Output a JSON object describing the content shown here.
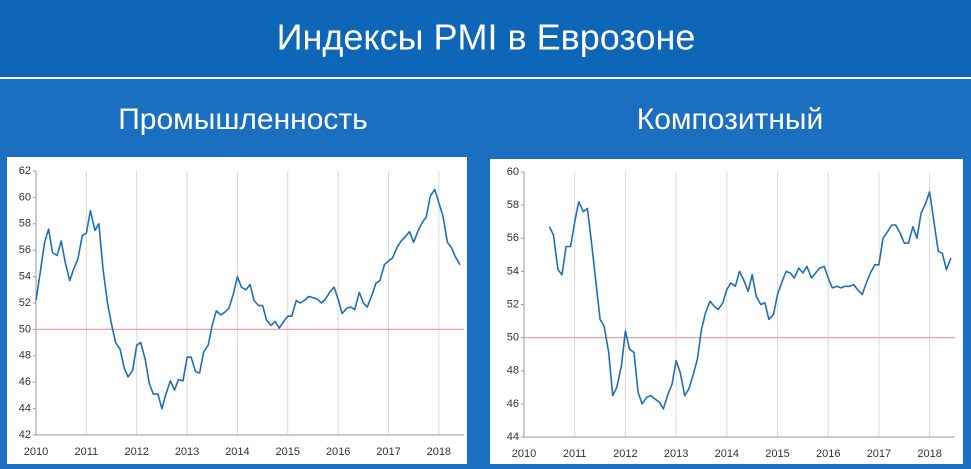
{
  "title": "Индексы PMI в Еврозоне",
  "chart_data": [
    {
      "type": "line",
      "title": "Промышленность",
      "color": "#1f6fb8",
      "ref_line": 50,
      "grid": true,
      "xlim": [
        2010,
        2018.5
      ],
      "xticks": [
        2010,
        2011,
        2012,
        2013,
        2014,
        2015,
        2016,
        2017,
        2018
      ],
      "ylim": [
        42,
        62
      ],
      "yticks": [
        42,
        44,
        46,
        48,
        50,
        52,
        54,
        56,
        58,
        60,
        62
      ],
      "x": [
        2010,
        2010.08,
        2010.17,
        2010.25,
        2010.33,
        2010.42,
        2010.5,
        2010.58,
        2010.67,
        2010.75,
        2010.83,
        2010.92,
        2011,
        2011.08,
        2011.17,
        2011.25,
        2011.33,
        2011.42,
        2011.5,
        2011.58,
        2011.67,
        2011.75,
        2011.83,
        2011.92,
        2012,
        2012.08,
        2012.17,
        2012.25,
        2012.33,
        2012.42,
        2012.5,
        2012.58,
        2012.67,
        2012.75,
        2012.83,
        2012.92,
        2013,
        2013.08,
        2013.17,
        2013.25,
        2013.33,
        2013.42,
        2013.5,
        2013.58,
        2013.67,
        2013.75,
        2013.83,
        2013.92,
        2014,
        2014.08,
        2014.17,
        2014.25,
        2014.33,
        2014.42,
        2014.5,
        2014.58,
        2014.67,
        2014.75,
        2014.83,
        2014.92,
        2015,
        2015.08,
        2015.17,
        2015.25,
        2015.33,
        2015.42,
        2015.5,
        2015.58,
        2015.67,
        2015.75,
        2015.83,
        2015.92,
        2016,
        2016.08,
        2016.17,
        2016.25,
        2016.33,
        2016.42,
        2016.5,
        2016.58,
        2016.67,
        2016.75,
        2016.83,
        2016.92,
        2017,
        2017.08,
        2017.17,
        2017.25,
        2017.33,
        2017.42,
        2017.5,
        2017.58,
        2017.67,
        2017.75,
        2017.83,
        2017.92,
        2018,
        2018.08,
        2018.17,
        2018.25,
        2018.33,
        2018.42
      ],
      "values": [
        52.2,
        54.2,
        56.6,
        57.6,
        55.8,
        55.6,
        56.7,
        55.1,
        53.7,
        54.6,
        55.3,
        57.1,
        57.3,
        59.0,
        57.5,
        58.0,
        54.6,
        52.0,
        50.4,
        49.0,
        48.5,
        47.1,
        46.4,
        46.9,
        48.8,
        49.0,
        47.7,
        45.9,
        45.1,
        45.1,
        44.0,
        45.1,
        46.1,
        45.4,
        46.2,
        46.1,
        47.9,
        47.9,
        46.8,
        46.7,
        48.3,
        48.8,
        50.3,
        51.4,
        51.1,
        51.3,
        51.6,
        52.7,
        54.0,
        53.2,
        53.0,
        53.4,
        52.2,
        51.8,
        51.8,
        50.7,
        50.3,
        50.6,
        50.1,
        50.6,
        51.0,
        51.0,
        52.2,
        52.0,
        52.2,
        52.5,
        52.4,
        52.3,
        52.0,
        52.3,
        52.8,
        53.2,
        52.3,
        51.2,
        51.6,
        51.7,
        51.5,
        52.8,
        52.0,
        51.7,
        52.6,
        53.5,
        53.7,
        54.9,
        55.2,
        55.4,
        56.2,
        56.7,
        57.0,
        57.4,
        56.6,
        57.4,
        58.1,
        58.5,
        60.1,
        60.6,
        59.6,
        58.6,
        56.6,
        56.2,
        55.5,
        54.9
      ]
    },
    {
      "type": "line",
      "title": "Композитный",
      "color": "#1f6fb8",
      "ref_line": 50,
      "grid": true,
      "xlim": [
        2010,
        2018.5
      ],
      "xticks": [
        2010,
        2011,
        2012,
        2013,
        2014,
        2015,
        2016,
        2017,
        2018
      ],
      "ylim": [
        44,
        60
      ],
      "yticks": [
        44,
        46,
        48,
        50,
        52,
        54,
        56,
        58,
        60
      ],
      "x": [
        2010.5,
        2010.58,
        2010.67,
        2010.75,
        2010.83,
        2010.92,
        2011,
        2011.08,
        2011.17,
        2011.25,
        2011.33,
        2011.42,
        2011.5,
        2011.58,
        2011.67,
        2011.75,
        2011.83,
        2011.92,
        2012,
        2012.08,
        2012.17,
        2012.25,
        2012.33,
        2012.42,
        2012.5,
        2012.58,
        2012.67,
        2012.75,
        2012.83,
        2012.92,
        2013,
        2013.08,
        2013.17,
        2013.25,
        2013.33,
        2013.42,
        2013.5,
        2013.58,
        2013.67,
        2013.75,
        2013.83,
        2013.92,
        2014,
        2014.08,
        2014.17,
        2014.25,
        2014.33,
        2014.42,
        2014.5,
        2014.58,
        2014.67,
        2014.75,
        2014.83,
        2014.92,
        2015,
        2015.08,
        2015.17,
        2015.25,
        2015.33,
        2015.42,
        2015.5,
        2015.58,
        2015.67,
        2015.75,
        2015.83,
        2015.92,
        2016,
        2016.08,
        2016.17,
        2016.25,
        2016.33,
        2016.42,
        2016.5,
        2016.58,
        2016.67,
        2016.75,
        2016.83,
        2016.92,
        2017,
        2017.08,
        2017.17,
        2017.25,
        2017.33,
        2017.42,
        2017.5,
        2017.58,
        2017.67,
        2017.75,
        2017.83,
        2017.92,
        2018,
        2018.08,
        2018.17,
        2018.25,
        2018.33,
        2018.42
      ],
      "values": [
        56.7,
        56.2,
        54.1,
        53.8,
        55.5,
        55.5,
        57.0,
        58.2,
        57.6,
        57.8,
        55.8,
        53.3,
        51.1,
        50.7,
        49.1,
        46.5,
        47.0,
        48.3,
        50.4,
        49.3,
        49.1,
        46.7,
        46.0,
        46.4,
        46.5,
        46.3,
        46.1,
        45.7,
        46.5,
        47.2,
        48.6,
        47.9,
        46.5,
        46.9,
        47.7,
        48.7,
        50.5,
        51.5,
        52.2,
        51.9,
        51.7,
        52.1,
        52.9,
        53.3,
        53.1,
        54.0,
        53.5,
        52.8,
        53.8,
        52.5,
        52.0,
        52.1,
        51.1,
        51.4,
        52.6,
        53.3,
        54.0,
        53.9,
        53.6,
        54.2,
        53.9,
        54.3,
        53.6,
        53.9,
        54.2,
        54.3,
        53.6,
        53.0,
        53.1,
        53.0,
        53.1,
        53.1,
        53.2,
        52.9,
        52.6,
        53.3,
        53.9,
        54.4,
        54.4,
        56.0,
        56.4,
        56.8,
        56.8,
        56.3,
        55.7,
        55.7,
        56.7,
        56.0,
        57.5,
        58.1,
        58.8,
        57.1,
        55.2,
        55.1,
        54.1,
        54.8
      ]
    }
  ]
}
